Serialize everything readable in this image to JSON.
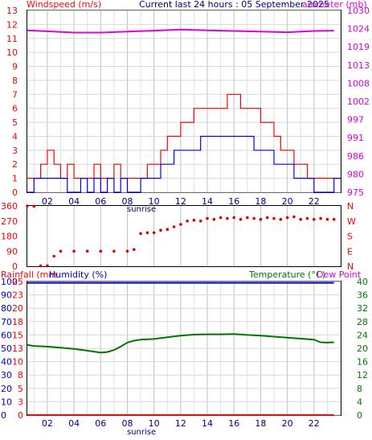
{
  "header": {
    "windspeed_label": "Windspeed (m/s)",
    "title": "Current last 24 hours : 05 September 2025",
    "barometer_label": "arometer (mb)"
  },
  "panel2": {
    "compass_labels": [
      "N",
      "W",
      "S",
      "E",
      "N"
    ]
  },
  "panel3": {
    "rainfall_label": "Rainfall (mm",
    "humidity_label": "Humidity (%)",
    "temperature_label": "Temperature (°C)",
    "dewpoint_label": "Dew Point"
  },
  "x_axis": {
    "tick_labels": [
      "02",
      "04",
      "06",
      "08",
      "10",
      "12",
      "14",
      "16",
      "18",
      "20",
      "22"
    ],
    "sunrise_label": "sunrise"
  },
  "colors": {
    "wind_gust": "#ff0000",
    "wind_avg": "#0000ff",
    "barometer": "#e000e0",
    "direction": "#dd0000",
    "humidity": "#0000cc",
    "temperature": "#007700",
    "rainfall": "#ff0000",
    "grid": "#c0c0c0"
  },
  "chart_data": [
    {
      "type": "line",
      "title": "Current last 24 hours : 05 September 2025",
      "x_unit": "hours",
      "x_range": [
        0.5,
        24
      ],
      "series": [
        {
          "name": "Windspeed (m/s) gust",
          "axis": "left",
          "color": "#ff0000",
          "x": [
            0.5,
            1,
            1.5,
            2,
            2.5,
            3,
            3.5,
            4,
            4.5,
            5,
            5.5,
            6,
            6.5,
            7,
            7.5,
            8,
            8.5,
            9,
            9.5,
            10,
            10.5,
            11,
            11.5,
            12,
            12.5,
            13,
            13.5,
            14,
            14.5,
            15,
            15.5,
            16,
            16.5,
            17,
            17.5,
            18,
            18.5,
            19,
            19.5,
            20,
            20.5,
            21,
            21.5,
            22,
            22.5,
            23,
            23.5
          ],
          "y": [
            1,
            1,
            2,
            3,
            2,
            1,
            2,
            1,
            1,
            1,
            2,
            1,
            1,
            2,
            1,
            1,
            1,
            1,
            2,
            2,
            3,
            4,
            4,
            5,
            5,
            6,
            6,
            6,
            6,
            6,
            7,
            7,
            6,
            6,
            6,
            5,
            5,
            4,
            3,
            3,
            2,
            2,
            1,
            1,
            1,
            1,
            1
          ]
        },
        {
          "name": "Windspeed (m/s) average",
          "axis": "left",
          "color": "#0000ff",
          "x": [
            0.5,
            1,
            1.5,
            2,
            2.5,
            3,
            3.5,
            4,
            4.5,
            5,
            5.5,
            6,
            6.5,
            7,
            7.5,
            8,
            8.5,
            9,
            9.5,
            10,
            10.5,
            11,
            11.5,
            12,
            12.5,
            13,
            13.5,
            14,
            14.5,
            15,
            15.5,
            16,
            16.5,
            17,
            17.5,
            18,
            18.5,
            19,
            19.5,
            20,
            20.5,
            21,
            21.5,
            22,
            22.5,
            23,
            23.5
          ],
          "y": [
            0,
            1,
            1,
            1,
            1,
            1,
            0,
            0,
            1,
            0,
            1,
            0,
            1,
            0,
            1,
            0,
            0,
            1,
            1,
            1,
            2,
            2,
            3,
            3,
            3,
            3,
            4,
            4,
            4,
            4,
            4,
            4,
            4,
            4,
            3,
            3,
            3,
            2,
            2,
            2,
            1,
            1,
            1,
            0,
            0,
            0,
            1
          ]
        },
        {
          "name": "Barometer (mb)",
          "axis": "right",
          "color": "#e000e0",
          "x": [
            0.5,
            2,
            4,
            6,
            8,
            10,
            12,
            14,
            16,
            18,
            20,
            22,
            23.5
          ],
          "y": [
            1024,
            1023.7,
            1023.3,
            1023.3,
            1023.6,
            1023.9,
            1024.2,
            1024,
            1023.8,
            1023.6,
            1023.4,
            1023.8,
            1023.9
          ]
        }
      ],
      "y_left": {
        "ticks": [
          0,
          1,
          2,
          3,
          4,
          5,
          6,
          7,
          8,
          9,
          10,
          11,
          12,
          13
        ],
        "range": [
          0,
          13
        ]
      },
      "y_right": {
        "ticks": [
          975,
          980,
          986,
          991,
          997,
          1002,
          1008,
          1013,
          1019,
          1024,
          1030
        ],
        "range": [
          975,
          1030
        ]
      }
    },
    {
      "type": "scatter",
      "x_range": [
        0.5,
        24
      ],
      "series": [
        {
          "name": "Wind direction",
          "color": "#dd0000",
          "x": [
            0.5,
            1,
            1.5,
            2,
            2.5,
            3,
            4,
            5,
            6,
            7,
            8,
            8.5,
            9,
            9.5,
            10,
            10.5,
            11,
            11.5,
            12,
            12.5,
            13,
            13.5,
            14,
            14.5,
            15,
            15.5,
            16,
            16.5,
            17,
            17.5,
            18,
            18.5,
            19,
            19.5,
            20,
            20.5,
            21,
            21.5,
            22,
            22.5,
            23,
            23.5
          ],
          "y": [
            360,
            358,
            2,
            3,
            60,
            90,
            90,
            90,
            90,
            90,
            90,
            100,
            195,
            200,
            200,
            215,
            220,
            235,
            250,
            270,
            275,
            270,
            285,
            280,
            290,
            285,
            290,
            280,
            290,
            285,
            280,
            290,
            285,
            280,
            290,
            295,
            280,
            285,
            280,
            285,
            280,
            280
          ]
        }
      ],
      "y_left": {
        "ticks": [
          0,
          45,
          90,
          135,
          180,
          225,
          270,
          315,
          360
        ],
        "range": [
          0,
          360
        ]
      },
      "y_right_labels": [
        "N",
        "W",
        "S",
        "E",
        "N"
      ]
    },
    {
      "type": "line",
      "x_range": [
        0.5,
        24
      ],
      "series": [
        {
          "name": "Humidity (%)",
          "axis": "left",
          "color": "#0000cc",
          "x": [
            0.5,
            23.5
          ],
          "y": [
            99,
            99
          ]
        },
        {
          "name": "Temperature (°C)",
          "axis": "right",
          "color": "#007700",
          "x": [
            0.5,
            1,
            2,
            3,
            4,
            5,
            5.5,
            6,
            6.5,
            7,
            7.5,
            8,
            8.5,
            9,
            10,
            11,
            12,
            13,
            14,
            15,
            16,
            17,
            18,
            19,
            20,
            21,
            22,
            22.5,
            23,
            23.5
          ],
          "y": [
            21,
            20.7,
            20.5,
            20.2,
            19.8,
            19.3,
            19,
            18.7,
            18.9,
            19.5,
            20.5,
            21.7,
            22.3,
            22.6,
            22.8,
            23.3,
            23.8,
            24.1,
            24.2,
            24.2,
            24.3,
            24,
            23.8,
            23.5,
            23.2,
            22.9,
            22.6,
            21.8,
            21.7,
            21.8
          ]
        },
        {
          "name": "Rainfall (mm)",
          "axis": "rain",
          "color": "#ff0000",
          "x": [
            0.5,
            23.5
          ],
          "y": [
            0,
            0
          ]
        }
      ],
      "y_left": {
        "ticks": [
          0,
          10,
          20,
          30,
          40,
          50,
          60,
          70,
          80,
          90,
          100
        ],
        "range": [
          0,
          100
        ]
      },
      "y_rain": {
        "ticks": [
          0,
          3,
          5,
          8,
          10,
          13,
          15,
          18,
          20,
          23,
          25
        ],
        "range": [
          0,
          25
        ]
      },
      "y_right": {
        "ticks": [
          0,
          4,
          8,
          12,
          16,
          20,
          24,
          28,
          32,
          36,
          40
        ],
        "range": [
          0,
          40
        ]
      }
    }
  ]
}
